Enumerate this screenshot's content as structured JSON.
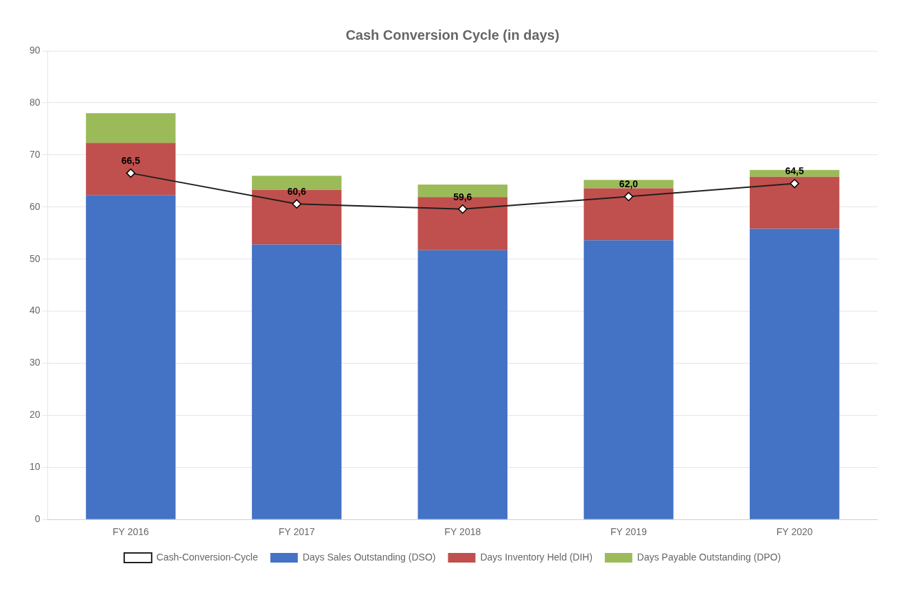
{
  "chart_data": {
    "type": "bar",
    "title": "Cash Conversion Cycle (in days)",
    "categories": [
      "FY 2016",
      "FY 2017",
      "FY 2018",
      "FY 2019",
      "FY 2020"
    ],
    "stacked": true,
    "series": [
      {
        "name": "Days Sales Outstanding (DSO)",
        "color": "#4472c4",
        "values": [
          62.3,
          52.8,
          51.7,
          53.6,
          55.8
        ]
      },
      {
        "name": "Days Inventory Held (DIH)",
        "color": "#c0504d",
        "values": [
          10.0,
          10.5,
          10.2,
          10.0,
          10.0
        ]
      },
      {
        "name": "Days Payable Outstanding (DPO)",
        "color": "#9bbb59",
        "values": [
          5.7,
          2.7,
          2.4,
          1.6,
          1.3
        ]
      },
      {
        "name": "Cash-Conversion-Cycle",
        "type": "line",
        "color": "#1f1f1f",
        "marker": "diamond",
        "data_labels": true,
        "values": [
          66.5,
          60.6,
          59.6,
          62.0,
          64.5
        ],
        "value_labels": [
          "66,5",
          "60,6",
          "59,6",
          "62,0",
          "64,5"
        ]
      }
    ],
    "ylim": [
      0,
      90
    ],
    "yticks": [
      0,
      10,
      20,
      30,
      40,
      50,
      60,
      70,
      80,
      90
    ],
    "grid": "y",
    "legend": "bottom"
  }
}
